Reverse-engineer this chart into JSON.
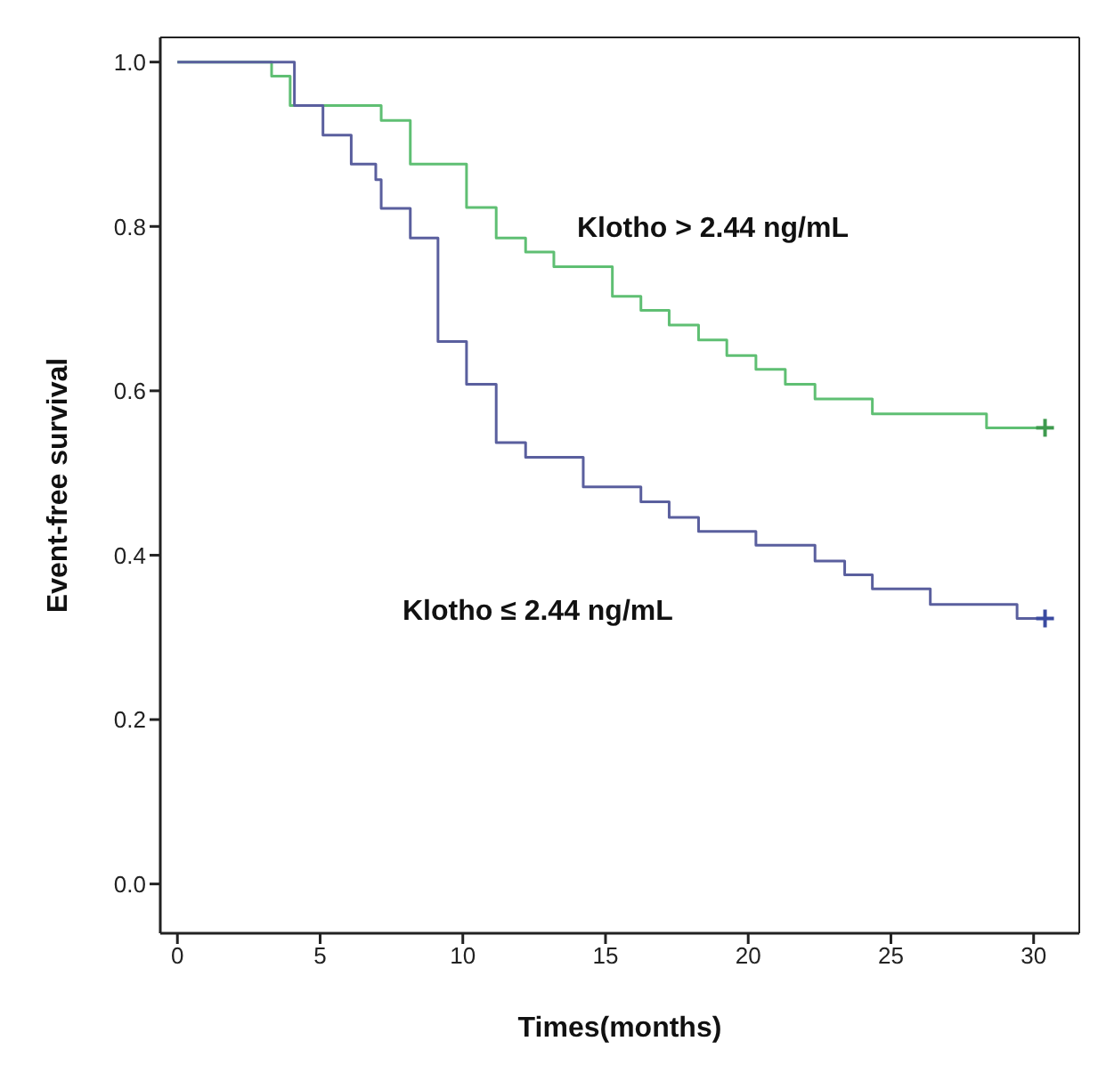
{
  "chart_data": {
    "type": "step",
    "xlabel": "Times(months)",
    "ylabel": "Event-free survival",
    "xlim": [
      -0.6,
      31.6
    ],
    "ylim": [
      -0.06,
      1.03
    ],
    "xticks": [
      0,
      5,
      10,
      15,
      20,
      25,
      30
    ],
    "yticks": [
      {
        "value": 0,
        "label": "0.0"
      },
      {
        "value": 0.2,
        "label": "0.2"
      },
      {
        "value": 0.4,
        "label": "0.4"
      },
      {
        "value": 0.6,
        "label": "0.6"
      },
      {
        "value": 0.8,
        "label": "0.8"
      },
      {
        "value": 1,
        "label": "1.0"
      }
    ],
    "grid": false,
    "marker": "none",
    "line_style": "solid",
    "series": [
      {
        "color": "#5fbf73",
        "x": [
          0,
          3.3,
          3.95,
          7.14,
          8.16,
          10.13,
          11.17,
          12.2,
          13.19,
          15.24,
          16.24,
          17.23,
          18.26,
          19.25,
          20.27,
          21.3,
          22.34,
          24.35,
          28.35,
          30.4
        ],
        "values": [
          1,
          0.983,
          0.947,
          0.929,
          0.876,
          0.823,
          0.786,
          0.769,
          0.751,
          0.715,
          0.698,
          0.68,
          0.662,
          0.643,
          0.626,
          0.608,
          0.59,
          0.572,
          0.555,
          0.555
        ]
      },
      {
        "color": "#5a5f9e",
        "x": [
          0,
          4.1,
          5.1,
          6.09,
          6.95,
          7.14,
          8.16,
          9.13,
          10.13,
          11.17,
          12.2,
          14.22,
          16.24,
          17.23,
          18.26,
          20.27,
          22.34,
          23.38,
          24.35,
          26.38,
          29.42,
          30.4
        ],
        "values": [
          1,
          0.947,
          0.911,
          0.876,
          0.857,
          0.822,
          0.786,
          0.66,
          0.608,
          0.537,
          0.519,
          0.483,
          0.465,
          0.446,
          0.429,
          0.412,
          0.393,
          0.376,
          0.359,
          0.34,
          0.323,
          0.323
        ]
      },
      {
        "type": "scatter",
        "marker": "cross",
        "color": "#3e9a4e",
        "x": [
          30.4
        ],
        "values": [
          0.555
        ]
      },
      {
        "type": "scatter",
        "marker": "cross",
        "color": "#3a4aa0",
        "x": [
          30.4
        ],
        "values": [
          0.323
        ]
      }
    ],
    "annotations": [
      "Klotho > 2.44 ng/mL",
      "Klotho ≤ 2.44 ng/mL"
    ]
  }
}
